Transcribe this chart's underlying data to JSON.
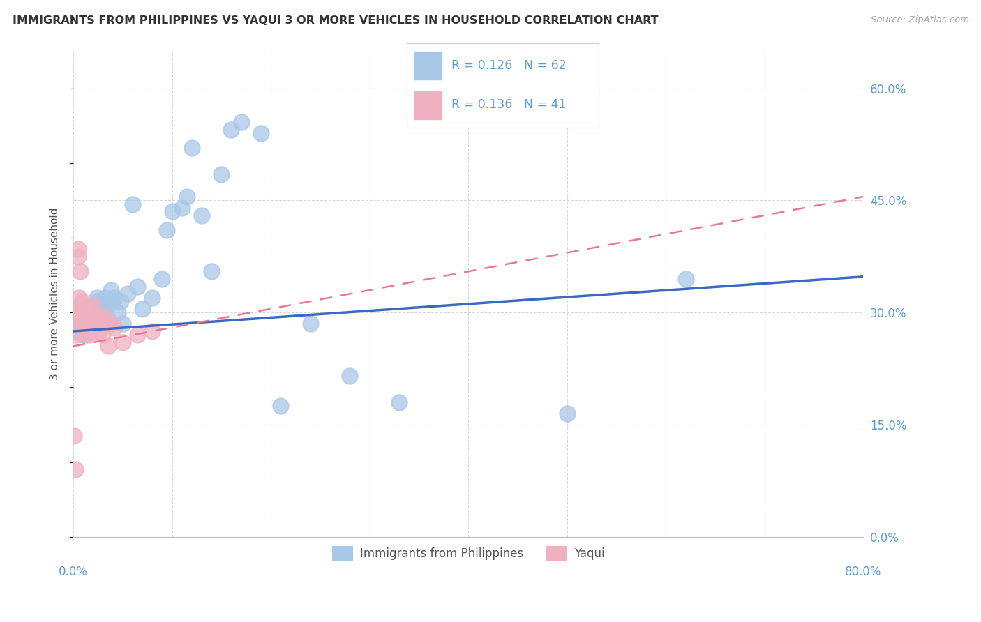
{
  "title": "IMMIGRANTS FROM PHILIPPINES VS YAQUI 3 OR MORE VEHICLES IN HOUSEHOLD CORRELATION CHART",
  "source": "Source: ZipAtlas.com",
  "ylabel": "3 or more Vehicles in Household",
  "xlim": [
    0.0,
    0.8
  ],
  "ylim": [
    0.0,
    0.65
  ],
  "grid_color": "#d8d8d8",
  "bg_color": "#ffffff",
  "blue_marker_color": "#a8c8e8",
  "pink_marker_color": "#f0b0c0",
  "blue_line_color": "#3a6abf",
  "pink_line_color": "#e87890",
  "axis_tick_color": "#5b9bd5",
  "label_color": "#555555",
  "title_color": "#333333",
  "source_color": "#aaaaaa",
  "R1": 0.126,
  "N1": 62,
  "R2": 0.136,
  "N2": 41,
  "series1_label": "Immigrants from Philippines",
  "series2_label": "Yaqui",
  "blue_line_y0": 0.275,
  "blue_line_y1": 0.348,
  "pink_line_y0": 0.255,
  "pink_line_y1": 0.455,
  "philippines_x": [
    0.003,
    0.004,
    0.005,
    0.005,
    0.006,
    0.006,
    0.007,
    0.007,
    0.008,
    0.009,
    0.01,
    0.01,
    0.011,
    0.012,
    0.013,
    0.014,
    0.015,
    0.016,
    0.017,
    0.018,
    0.019,
    0.02,
    0.021,
    0.022,
    0.023,
    0.024,
    0.025,
    0.027,
    0.028,
    0.03,
    0.032,
    0.034,
    0.036,
    0.038,
    0.04,
    0.042,
    0.045,
    0.048,
    0.05,
    0.055,
    0.06,
    0.065,
    0.07,
    0.08,
    0.09,
    0.095,
    0.1,
    0.11,
    0.115,
    0.12,
    0.13,
    0.14,
    0.15,
    0.16,
    0.17,
    0.19,
    0.21,
    0.24,
    0.28,
    0.33,
    0.5,
    0.62
  ],
  "philippines_y": [
    0.275,
    0.285,
    0.29,
    0.3,
    0.275,
    0.295,
    0.28,
    0.3,
    0.285,
    0.27,
    0.275,
    0.29,
    0.285,
    0.295,
    0.27,
    0.3,
    0.29,
    0.285,
    0.295,
    0.3,
    0.285,
    0.31,
    0.295,
    0.28,
    0.3,
    0.32,
    0.315,
    0.31,
    0.295,
    0.305,
    0.32,
    0.295,
    0.31,
    0.33,
    0.315,
    0.32,
    0.3,
    0.315,
    0.285,
    0.325,
    0.445,
    0.335,
    0.305,
    0.32,
    0.345,
    0.41,
    0.435,
    0.44,
    0.455,
    0.52,
    0.43,
    0.355,
    0.485,
    0.545,
    0.555,
    0.54,
    0.175,
    0.285,
    0.215,
    0.18,
    0.165,
    0.345
  ],
  "yaqui_x": [
    0.001,
    0.002,
    0.003,
    0.003,
    0.004,
    0.004,
    0.005,
    0.005,
    0.006,
    0.006,
    0.007,
    0.007,
    0.007,
    0.008,
    0.008,
    0.009,
    0.009,
    0.01,
    0.01,
    0.011,
    0.012,
    0.012,
    0.013,
    0.014,
    0.015,
    0.016,
    0.017,
    0.018,
    0.02,
    0.022,
    0.024,
    0.026,
    0.028,
    0.03,
    0.032,
    0.035,
    0.038,
    0.042,
    0.05,
    0.065,
    0.08
  ],
  "yaqui_y": [
    0.135,
    0.09,
    0.27,
    0.295,
    0.305,
    0.3,
    0.375,
    0.385,
    0.32,
    0.3,
    0.355,
    0.31,
    0.295,
    0.275,
    0.3,
    0.315,
    0.28,
    0.29,
    0.275,
    0.295,
    0.305,
    0.285,
    0.28,
    0.3,
    0.275,
    0.27,
    0.3,
    0.28,
    0.31,
    0.285,
    0.295,
    0.275,
    0.285,
    0.27,
    0.295,
    0.255,
    0.285,
    0.28,
    0.26,
    0.27,
    0.275
  ]
}
